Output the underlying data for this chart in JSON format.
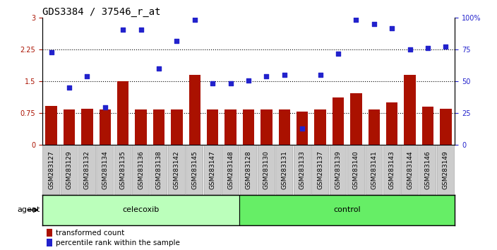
{
  "title": "GDS3384 / 37546_r_at",
  "samples": [
    "GSM283127",
    "GSM283129",
    "GSM283132",
    "GSM283134",
    "GSM283135",
    "GSM283136",
    "GSM283138",
    "GSM283142",
    "GSM283145",
    "GSM283147",
    "GSM283148",
    "GSM283128",
    "GSM283130",
    "GSM283131",
    "GSM283133",
    "GSM283137",
    "GSM283139",
    "GSM283140",
    "GSM283141",
    "GSM283143",
    "GSM283144",
    "GSM283146",
    "GSM283149"
  ],
  "bar_values": [
    0.92,
    0.84,
    0.86,
    0.84,
    1.5,
    0.84,
    0.84,
    0.84,
    1.65,
    0.84,
    0.84,
    0.84,
    0.84,
    0.84,
    0.78,
    0.84,
    1.12,
    1.22,
    0.84,
    1.0,
    1.65,
    0.9,
    0.86
  ],
  "percentile_values": [
    2.18,
    1.35,
    1.62,
    0.88,
    2.72,
    2.72,
    1.8,
    2.44,
    2.95,
    1.45,
    1.45,
    1.52,
    1.62,
    1.65,
    0.38,
    1.65,
    2.15,
    2.95,
    2.85,
    2.75,
    2.25,
    2.28,
    2.32
  ],
  "celecoxib_count": 11,
  "control_count": 12,
  "bar_color": "#AA1100",
  "dot_color": "#2222CC",
  "left_ylim": [
    0,
    3
  ],
  "left_yticks": [
    0,
    0.75,
    1.5,
    2.25,
    3
  ],
  "right_yticks": [
    0,
    25,
    50,
    75,
    100
  ],
  "hline_values": [
    0.75,
    1.5,
    2.25
  ],
  "celecoxib_label": "celecoxib",
  "control_label": "control",
  "agent_label": "agent",
  "legend_bar_label": "transformed count",
  "legend_dot_label": "percentile rank within the sample",
  "bg_plot": "#FFFFFF",
  "bg_xtick": "#CCCCCC",
  "bg_agent_celecoxib": "#BBFFBB",
  "bg_agent_control": "#66EE66",
  "title_fontsize": 10,
  "tick_fontsize": 7,
  "xtick_fontsize": 6.5
}
